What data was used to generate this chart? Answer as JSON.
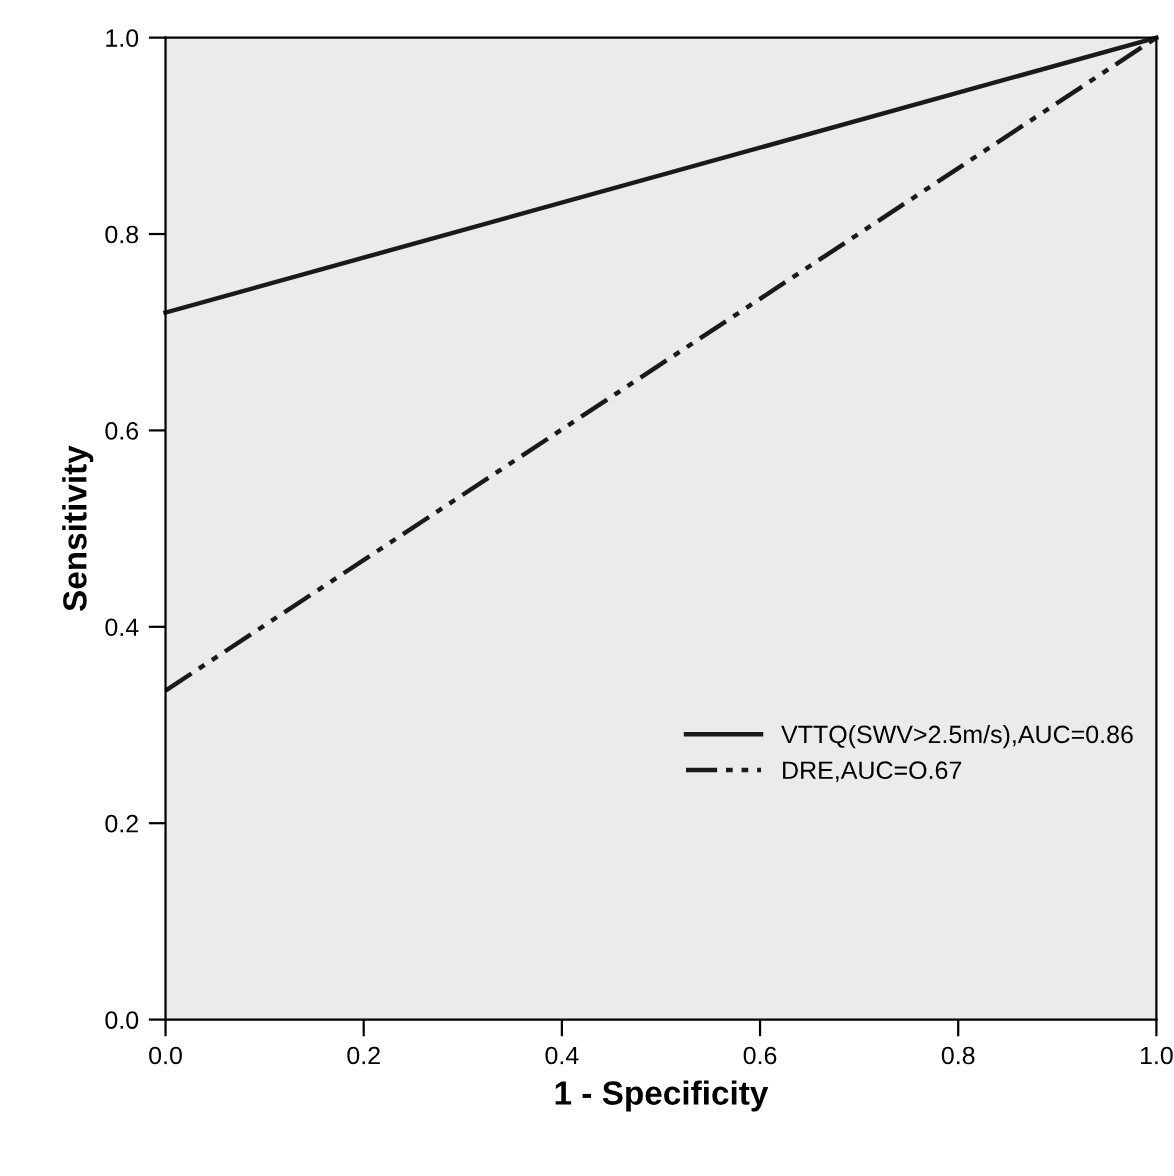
{
  "chart_data": {
    "type": "line",
    "xlabel": "1 - Specificity",
    "ylabel": "Sensitivity",
    "series": [
      {
        "name": "VTTQ(SWV>2.5m/s),AUC=0.86",
        "color": "#1a1a1a",
        "values": [
          0.72,
          1
        ],
        "line_style": "solid"
      },
      {
        "name": "DRE,AUC=O.67",
        "color": "#1a1a1a",
        "values": [
          0.335,
          1
        ],
        "line_style": "dashed"
      }
    ],
    "x": [
      0,
      1
    ],
    "xlim": [
      0,
      1
    ],
    "ylim": [
      0,
      1
    ],
    "xticks": [
      {
        "value": 0,
        "label": "0.0"
      },
      0.2,
      0.4,
      0.6,
      0.8,
      {
        "value": 1,
        "label": "1.0"
      }
    ],
    "yticks": [
      {
        "value": 0,
        "label": "0.0"
      },
      0.2,
      0.4,
      0.6,
      0.8,
      {
        "value": 1,
        "label": "1.0"
      }
    ],
    "grid": false,
    "legend": "right",
    "marker": "none"
  }
}
